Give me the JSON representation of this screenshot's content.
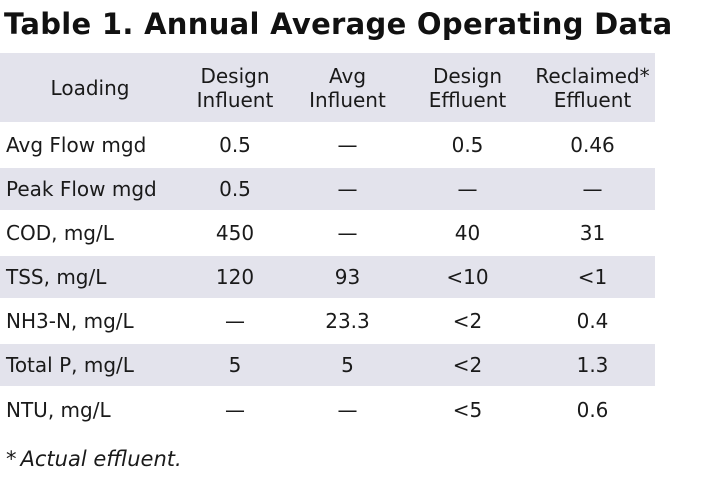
{
  "title": "Table 1. Annual Average Operating Data",
  "table": {
    "headers": [
      [
        "Loading"
      ],
      [
        "Design",
        "Influent"
      ],
      [
        "Avg",
        "Influent"
      ],
      [
        "Design",
        "Effluent"
      ],
      [
        "Reclaimed*",
        "Effluent"
      ]
    ],
    "rows": [
      [
        "Avg Flow mgd",
        "0.5",
        "—",
        "0.5",
        "0.46"
      ],
      [
        "Peak Flow mgd",
        "0.5",
        "—",
        "—",
        "—"
      ],
      [
        "COD, mg/L",
        "450",
        "—",
        "40",
        "31"
      ],
      [
        "TSS, mg/L",
        "120",
        "93",
        "<10",
        "<1"
      ],
      [
        "NH3-N, mg/L",
        "—",
        "23.3",
        "<2",
        "0.4"
      ],
      [
        "Total P, mg/L",
        "5",
        "5",
        "<2",
        "1.3"
      ],
      [
        "NTU, mg/L",
        "—",
        "—",
        "<5",
        "0.6"
      ]
    ]
  },
  "footnote": {
    "mark": "*",
    "text": "Actual effluent."
  },
  "colors": {
    "row_shade": "#e3e3ec",
    "text": "#1a1a1a"
  }
}
